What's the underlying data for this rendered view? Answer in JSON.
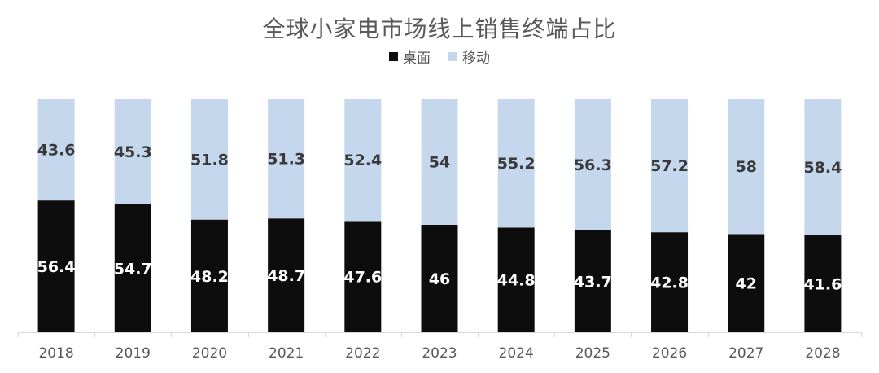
{
  "chart_data": {
    "type": "bar",
    "stacked": true,
    "title": "全球小家电市场线上销售终端占比",
    "xlabel": "",
    "ylabel": "",
    "ylim": [
      0,
      100
    ],
    "grid": false,
    "legend_position": "top",
    "categories": [
      "2018",
      "2019",
      "2020",
      "2021",
      "2022",
      "2023",
      "2024",
      "2025",
      "2026",
      "2027",
      "2028"
    ],
    "series": [
      {
        "name": "桌面",
        "color": "#0d0d0d",
        "label_color": "#ffffff",
        "values": [
          56.4,
          54.7,
          48.2,
          48.7,
          47.6,
          46,
          44.8,
          43.7,
          42.8,
          42,
          41.6
        ]
      },
      {
        "name": "移动",
        "color": "#c5d7ec",
        "label_color": "#3a3a3a",
        "values": [
          43.6,
          45.3,
          51.8,
          51.3,
          52.4,
          54,
          55.2,
          56.3,
          57.2,
          58,
          58.4
        ]
      }
    ]
  }
}
